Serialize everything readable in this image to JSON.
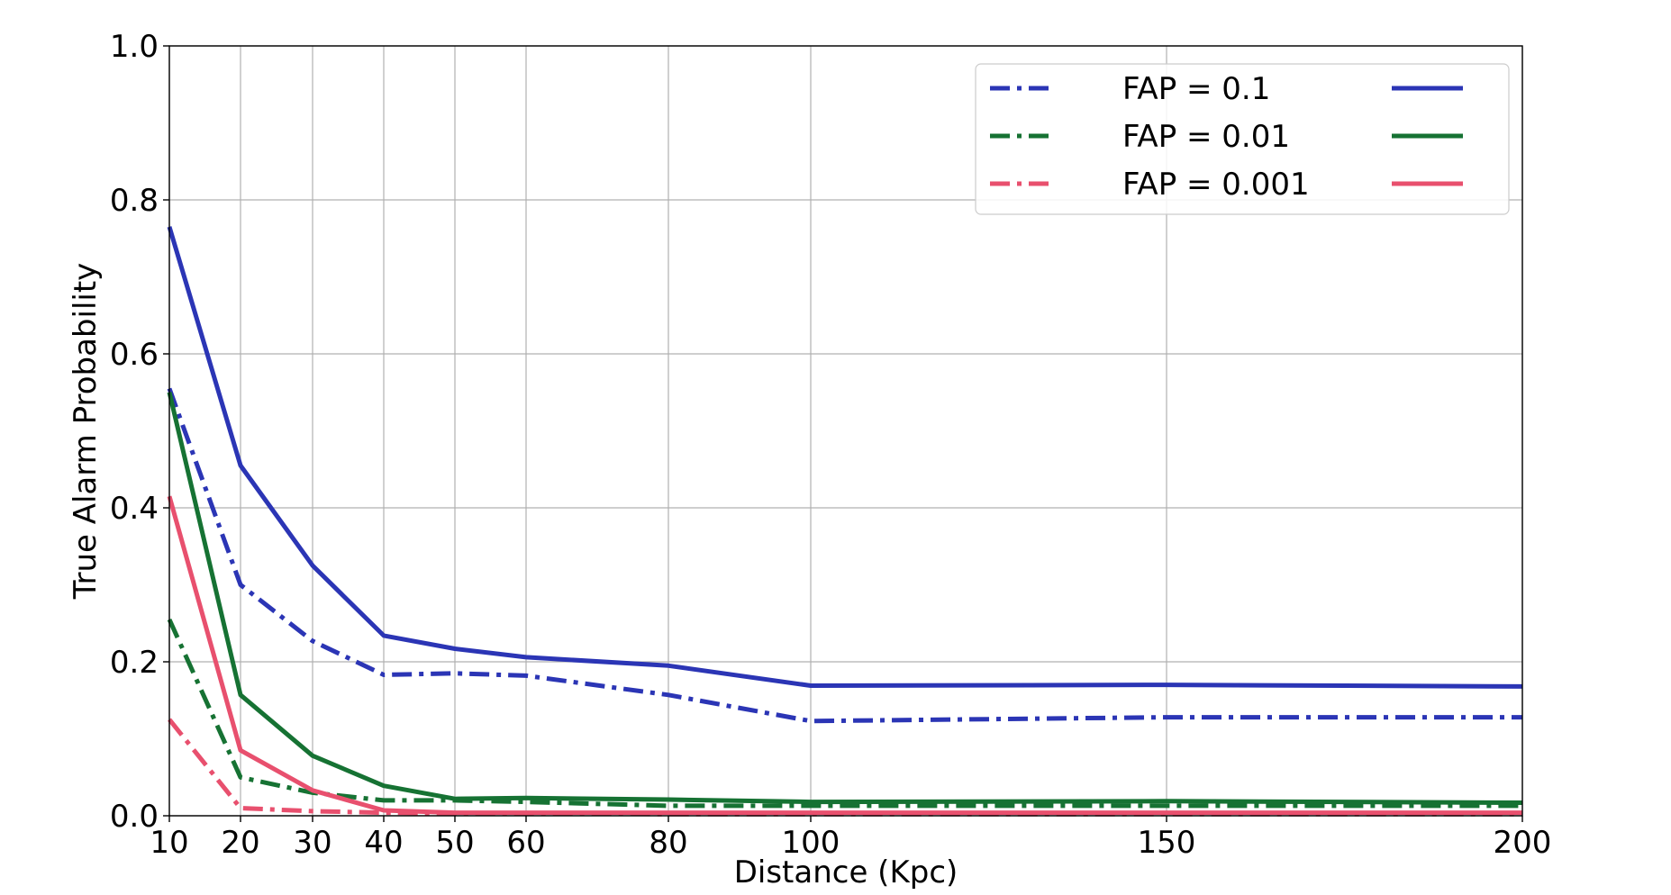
{
  "chart_data": {
    "type": "line",
    "xlabel": "Distance (Kpc)",
    "ylabel": "True Alarm Probability",
    "xlim": [
      10,
      200
    ],
    "ylim": [
      0.0,
      1.0
    ],
    "x_ticks": [
      10,
      20,
      30,
      40,
      50,
      60,
      80,
      100,
      150,
      200
    ],
    "x_tick_labels": [
      "10",
      "20",
      "30",
      "40",
      "50",
      "60",
      "80",
      "100",
      "150",
      "200"
    ],
    "y_ticks": [
      0.0,
      0.2,
      0.4,
      0.6,
      0.8,
      1.0
    ],
    "y_tick_labels": [
      "0.0",
      "0.2",
      "0.4",
      "0.6",
      "0.8",
      "1.0"
    ],
    "x_scale": "piecewise (x ticks at positions of 10, 20, 30, 40, 50, 60, 80, 100, 150, 200)",
    "grid": true,
    "legend_position": "top-right",
    "x": [
      10,
      20,
      30,
      40,
      50,
      60,
      80,
      100,
      150,
      200
    ],
    "series": [
      {
        "group": "FAP = 0.1",
        "style": "dashdot",
        "color": "#2b35b5",
        "values": [
          0.555,
          0.3,
          0.227,
          0.183,
          0.185,
          0.182,
          0.157,
          0.123,
          0.128,
          0.128
        ]
      },
      {
        "group": "FAP = 0.1",
        "style": "solid",
        "color": "#2b35b5",
        "values": [
          0.765,
          0.455,
          0.325,
          0.234,
          0.217,
          0.206,
          0.195,
          0.169,
          0.17,
          0.168
        ]
      },
      {
        "group": "FAP = 0.01",
        "style": "dashdot",
        "color": "#167233",
        "values": [
          0.255,
          0.05,
          0.03,
          0.02,
          0.02,
          0.018,
          0.013,
          0.013,
          0.013,
          0.013
        ]
      },
      {
        "group": "FAP = 0.01",
        "style": "solid",
        "color": "#167233",
        "values": [
          0.55,
          0.157,
          0.078,
          0.039,
          0.022,
          0.023,
          0.021,
          0.018,
          0.019,
          0.017
        ]
      },
      {
        "group": "FAP = 0.001",
        "style": "dashdot",
        "color": "#e8506e",
        "values": [
          0.125,
          0.01,
          0.006,
          0.004,
          0.003,
          0.003,
          0.002,
          0.002,
          0.002,
          0.002
        ]
      },
      {
        "group": "FAP = 0.001",
        "style": "solid",
        "color": "#e8506e",
        "values": [
          0.415,
          0.085,
          0.033,
          0.007,
          0.004,
          0.004,
          0.004,
          0.004,
          0.004,
          0.004
        ]
      }
    ],
    "legend": [
      {
        "label": "FAP = 0.1",
        "color": "#2b35b5"
      },
      {
        "label": "FAP = 0.01",
        "color": "#167233"
      },
      {
        "label": "FAP = 0.001",
        "color": "#e8506e"
      }
    ]
  }
}
